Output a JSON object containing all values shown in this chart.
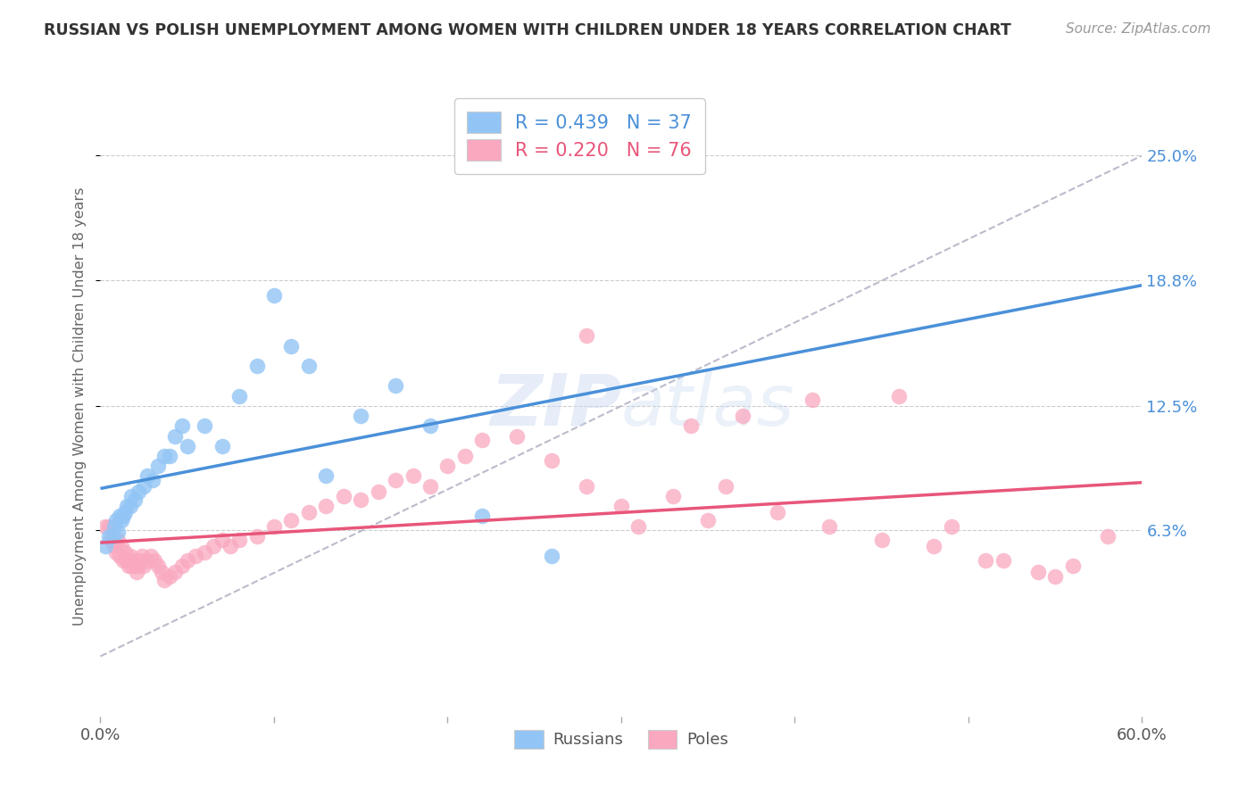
{
  "title": "RUSSIAN VS POLISH UNEMPLOYMENT AMONG WOMEN WITH CHILDREN UNDER 18 YEARS CORRELATION CHART",
  "source": "Source: ZipAtlas.com",
  "ylabel": "Unemployment Among Women with Children Under 18 years",
  "ytick_labels": [
    "25.0%",
    "18.8%",
    "12.5%",
    "6.3%"
  ],
  "ytick_values": [
    0.25,
    0.188,
    0.125,
    0.063
  ],
  "xlim": [
    0.0,
    0.6
  ],
  "ylim": [
    -0.03,
    0.28
  ],
  "legend_russians": "Russians",
  "legend_poles": "Poles",
  "R_russian": "0.439",
  "N_russian": "37",
  "R_polish": "0.220",
  "N_polish": "76",
  "color_russian": "#92C5F5",
  "color_polish": "#F9A8C0",
  "color_russian_line": "#4A90D9",
  "color_polish_line": "#E8567A",
  "color_dashed": "#AAAACC",
  "russians_x": [
    0.003,
    0.005,
    0.007,
    0.008,
    0.009,
    0.01,
    0.011,
    0.012,
    0.013,
    0.014,
    0.015,
    0.017,
    0.018,
    0.02,
    0.022,
    0.025,
    0.027,
    0.03,
    0.033,
    0.037,
    0.04,
    0.043,
    0.047,
    0.05,
    0.06,
    0.07,
    0.08,
    0.09,
    0.1,
    0.11,
    0.12,
    0.13,
    0.15,
    0.17,
    0.19,
    0.22,
    0.26
  ],
  "russians_y": [
    0.055,
    0.06,
    0.06,
    0.065,
    0.068,
    0.062,
    0.07,
    0.068,
    0.07,
    0.072,
    0.075,
    0.075,
    0.08,
    0.078,
    0.082,
    0.085,
    0.09,
    0.088,
    0.095,
    0.1,
    0.1,
    0.11,
    0.115,
    0.105,
    0.115,
    0.105,
    0.13,
    0.145,
    0.18,
    0.155,
    0.145,
    0.09,
    0.12,
    0.135,
    0.115,
    0.07,
    0.05
  ],
  "poles_x": [
    0.003,
    0.005,
    0.006,
    0.007,
    0.008,
    0.009,
    0.01,
    0.011,
    0.012,
    0.013,
    0.014,
    0.015,
    0.016,
    0.017,
    0.018,
    0.019,
    0.02,
    0.021,
    0.022,
    0.023,
    0.024,
    0.025,
    0.027,
    0.029,
    0.031,
    0.033,
    0.035,
    0.037,
    0.04,
    0.043,
    0.047,
    0.05,
    0.055,
    0.06,
    0.065,
    0.07,
    0.075,
    0.08,
    0.09,
    0.1,
    0.11,
    0.12,
    0.13,
    0.14,
    0.15,
    0.16,
    0.17,
    0.18,
    0.19,
    0.2,
    0.21,
    0.22,
    0.24,
    0.26,
    0.28,
    0.3,
    0.33,
    0.36,
    0.39,
    0.42,
    0.45,
    0.48,
    0.51,
    0.54,
    0.56,
    0.58,
    0.34,
    0.37,
    0.41,
    0.46,
    0.49,
    0.52,
    0.55,
    0.28,
    0.31,
    0.35
  ],
  "poles_y": [
    0.065,
    0.065,
    0.058,
    0.06,
    0.055,
    0.052,
    0.058,
    0.05,
    0.055,
    0.048,
    0.052,
    0.048,
    0.045,
    0.05,
    0.045,
    0.048,
    0.045,
    0.042,
    0.045,
    0.048,
    0.05,
    0.045,
    0.048,
    0.05,
    0.048,
    0.045,
    0.042,
    0.038,
    0.04,
    0.042,
    0.045,
    0.048,
    0.05,
    0.052,
    0.055,
    0.058,
    0.055,
    0.058,
    0.06,
    0.065,
    0.068,
    0.072,
    0.075,
    0.08,
    0.078,
    0.082,
    0.088,
    0.09,
    0.085,
    0.095,
    0.1,
    0.108,
    0.11,
    0.098,
    0.085,
    0.075,
    0.08,
    0.085,
    0.072,
    0.065,
    0.058,
    0.055,
    0.048,
    0.042,
    0.045,
    0.06,
    0.115,
    0.12,
    0.128,
    0.13,
    0.065,
    0.048,
    0.04,
    0.16,
    0.065,
    0.068
  ]
}
